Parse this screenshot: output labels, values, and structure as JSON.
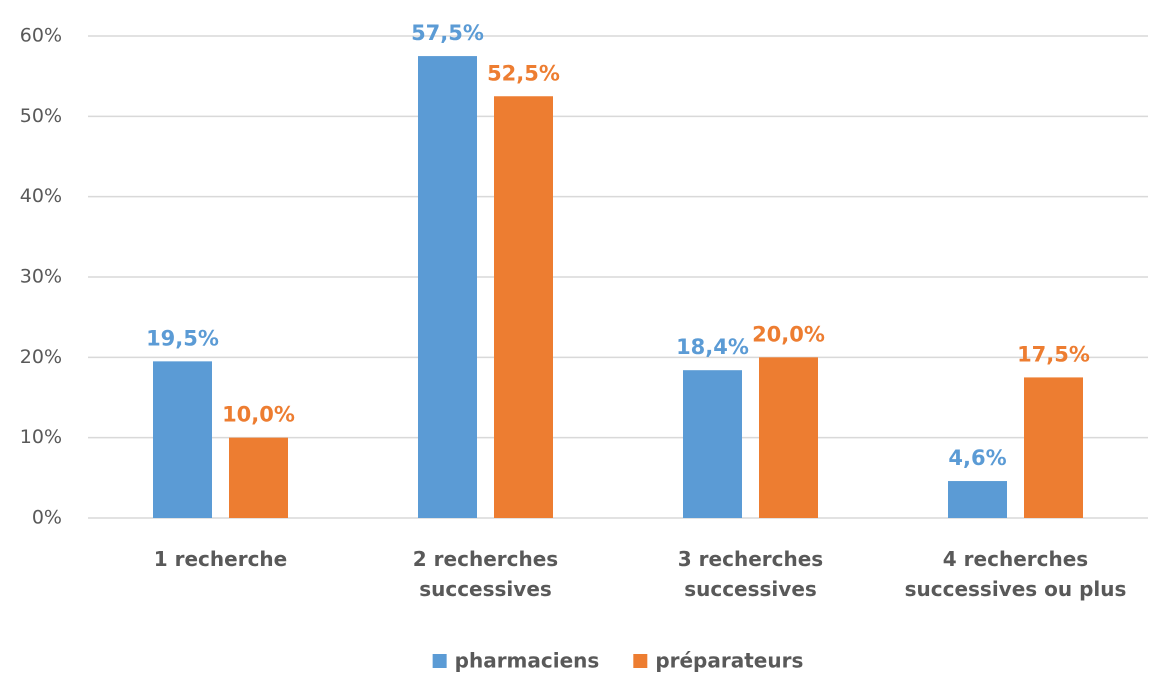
{
  "chart_data": {
    "type": "bar",
    "categories": [
      "1 recherche",
      "2 recherches successives",
      "3 recherches successives",
      "4 recherches successives ou plus"
    ],
    "series": [
      {
        "name": "pharmaciens",
        "color": "#5b9bd5",
        "values": [
          19.5,
          57.5,
          18.4,
          4.6
        ],
        "value_labels": [
          "19,5%",
          "57,5%",
          "18,4%",
          "4,6%"
        ]
      },
      {
        "name": "préparateurs",
        "color": "#ed7d31",
        "values": [
          10.0,
          52.5,
          20.0,
          17.5
        ],
        "value_labels": [
          "10,0%",
          "52,5%",
          "20,0%",
          "17,5%"
        ]
      }
    ],
    "ylim": [
      0,
      60
    ],
    "yticks": [
      {
        "value": 0,
        "label": "0%"
      },
      {
        "value": 10,
        "label": "10%"
      },
      {
        "value": 20,
        "label": "20%"
      },
      {
        "value": 30,
        "label": "30%"
      },
      {
        "value": 40,
        "label": "40%"
      },
      {
        "value": 50,
        "label": "50%"
      },
      {
        "value": 60,
        "label": "60%"
      }
    ],
    "grid": true,
    "legend": "bottom"
  }
}
